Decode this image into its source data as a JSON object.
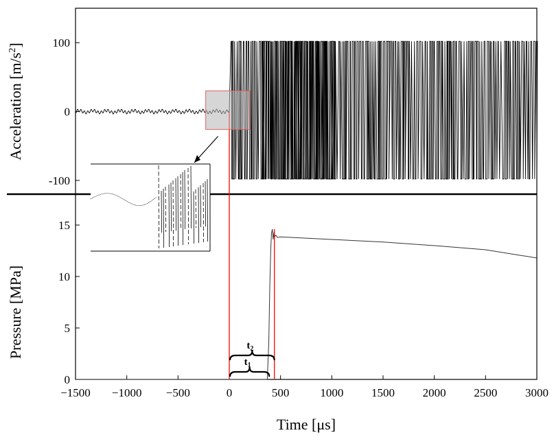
{
  "chart_data": [
    {
      "type": "line",
      "panel": "top",
      "ylabel_main": "Acceleration [m/s",
      "ylabel_sup": "2",
      "ylabel_tail": "]",
      "xlim": [
        -1500,
        3000
      ],
      "ylim": [
        -120,
        150
      ],
      "yticks": [
        100,
        0,
        -100
      ],
      "ytick_labels": [
        "100",
        "0",
        "-100"
      ],
      "series": [
        {
          "style": "pre-trigger low-amplitude noise",
          "x_range": [
            -1500,
            0
          ],
          "amplitude": 3
        },
        {
          "style": "saturated oscillation clipped at sensor limits",
          "x_range": [
            0,
            3000
          ],
          "clip": [
            -98,
            102
          ]
        }
      ],
      "highlight_region": {
        "x": [
          -230,
          200
        ],
        "y": [
          -26,
          30
        ],
        "color": "#e06060"
      },
      "inset": {
        "description": "zoom of highlighted region"
      }
    },
    {
      "type": "line",
      "panel": "bottom",
      "ylabel": "Pressure [MPa]",
      "xlabel": "Time [μs]",
      "xlim": [
        -1500,
        3000
      ],
      "ylim": [
        0,
        18
      ],
      "xticks": [
        -1500,
        -1000,
        -500,
        0,
        500,
        1000,
        1500,
        2000,
        2500,
        3000
      ],
      "xtick_labels": [
        "-1500",
        "-1000",
        "-500",
        "0",
        "500",
        "1000",
        "1500",
        "2000",
        "2500",
        "3000"
      ],
      "yticks": [
        0,
        5,
        10,
        15
      ],
      "ytick_labels": [
        "0",
        "5",
        "10",
        "15"
      ],
      "series": [
        {
          "points": [
            [
              -1500,
              0
            ],
            [
              370,
              0
            ],
            [
              385,
              3.5
            ],
            [
              395,
              9
            ],
            [
              405,
              12.8
            ],
            [
              412,
              14.2
            ],
            [
              420,
              14.6
            ],
            [
              428,
              13.6
            ],
            [
              436,
              14.3
            ],
            [
              445,
              13.9
            ],
            [
              455,
              14.0
            ],
            [
              470,
              13.8
            ],
            [
              500,
              13.85
            ],
            [
              600,
              13.8
            ],
            [
              800,
              13.7
            ],
            [
              1000,
              13.6
            ],
            [
              1500,
              13.35
            ],
            [
              2000,
              13.0
            ],
            [
              2500,
              12.6
            ],
            [
              3000,
              11.8
            ]
          ]
        }
      ],
      "markers": [
        {
          "x": 0,
          "color": "#ff0000"
        },
        {
          "x": 440,
          "color": "#ff0000"
        }
      ],
      "annotations": [
        {
          "label": "t",
          "sub": "1",
          "x": [
            0,
            390
          ],
          "y": 0.6
        },
        {
          "label": "t",
          "sub": "2",
          "x": [
            0,
            440
          ],
          "y": 2.2
        }
      ]
    }
  ]
}
